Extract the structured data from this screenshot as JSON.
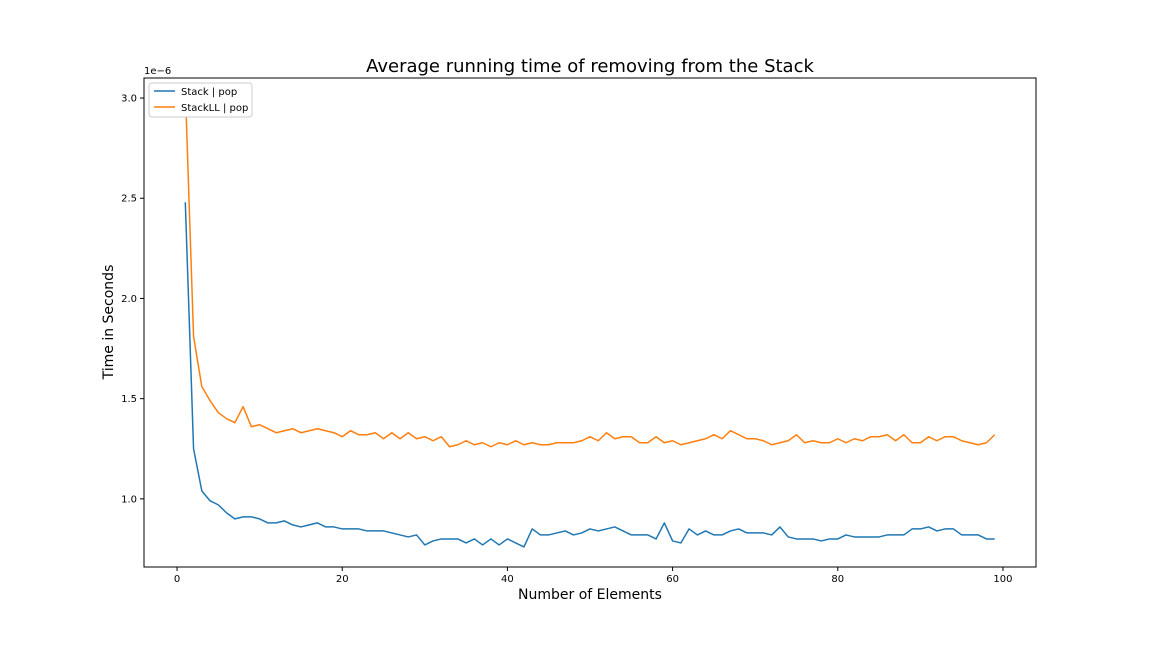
{
  "chart_data": {
    "type": "line",
    "title": "Average running time of removing from the Stack",
    "xlabel": "Number of Elements",
    "ylabel": "Time in Seconds",
    "y_offset_label": "1e−6",
    "xlim": [
      -4,
      104
    ],
    "ylim": [
      0.66,
      3.1
    ],
    "xticks": [
      0,
      20,
      40,
      60,
      80,
      100
    ],
    "xtick_labels": [
      "0",
      "20",
      "40",
      "60",
      "80",
      "100"
    ],
    "yticks": [
      1.0,
      1.5,
      2.0,
      2.5,
      3.0
    ],
    "ytick_labels": [
      "1.0",
      "1.5",
      "2.0",
      "2.5",
      "3.0"
    ],
    "grid": false,
    "legend_position": "upper-left",
    "x": [
      1,
      2,
      3,
      4,
      5,
      6,
      7,
      8,
      9,
      10,
      11,
      12,
      13,
      14,
      15,
      16,
      17,
      18,
      19,
      20,
      21,
      22,
      23,
      24,
      25,
      26,
      27,
      28,
      29,
      30,
      31,
      32,
      33,
      34,
      35,
      36,
      37,
      38,
      39,
      40,
      41,
      42,
      43,
      44,
      45,
      46,
      47,
      48,
      49,
      50,
      51,
      52,
      53,
      54,
      55,
      56,
      57,
      58,
      59,
      60,
      61,
      62,
      63,
      64,
      65,
      66,
      67,
      68,
      69,
      70,
      71,
      72,
      73,
      74,
      75,
      76,
      77,
      78,
      79,
      80,
      81,
      82,
      83,
      84,
      85,
      86,
      87,
      88,
      89,
      90,
      91,
      92,
      93,
      94,
      95,
      96,
      97,
      98,
      99
    ],
    "series": [
      {
        "name": "Stack | pop",
        "color": "#1f77b4",
        "values": [
          2.48,
          1.25,
          1.04,
          0.99,
          0.97,
          0.93,
          0.9,
          0.91,
          0.91,
          0.9,
          0.88,
          0.88,
          0.89,
          0.87,
          0.86,
          0.87,
          0.88,
          0.86,
          0.86,
          0.85,
          0.85,
          0.85,
          0.84,
          0.84,
          0.84,
          0.83,
          0.82,
          0.81,
          0.82,
          0.77,
          0.79,
          0.8,
          0.8,
          0.8,
          0.78,
          0.8,
          0.77,
          0.8,
          0.77,
          0.8,
          0.78,
          0.76,
          0.85,
          0.82,
          0.82,
          0.83,
          0.84,
          0.82,
          0.83,
          0.85,
          0.84,
          0.85,
          0.86,
          0.84,
          0.82,
          0.82,
          0.82,
          0.8,
          0.88,
          0.79,
          0.78,
          0.85,
          0.82,
          0.84,
          0.82,
          0.82,
          0.84,
          0.85,
          0.83,
          0.83,
          0.83,
          0.82,
          0.86,
          0.81,
          0.8,
          0.8,
          0.8,
          0.79,
          0.8,
          0.8,
          0.82,
          0.81,
          0.81,
          0.81,
          0.81,
          0.82,
          0.82,
          0.82,
          0.85,
          0.85,
          0.86,
          0.84,
          0.85,
          0.85,
          0.82,
          0.82,
          0.82,
          0.8,
          0.8
        ]
      },
      {
        "name": "StackLL | pop",
        "color": "#ff7f0e",
        "values": [
          3.05,
          1.81,
          1.56,
          1.49,
          1.43,
          1.4,
          1.38,
          1.46,
          1.36,
          1.37,
          1.35,
          1.33,
          1.34,
          1.35,
          1.33,
          1.34,
          1.35,
          1.34,
          1.33,
          1.31,
          1.34,
          1.32,
          1.32,
          1.33,
          1.3,
          1.33,
          1.3,
          1.33,
          1.3,
          1.31,
          1.29,
          1.31,
          1.26,
          1.27,
          1.29,
          1.27,
          1.28,
          1.26,
          1.28,
          1.27,
          1.29,
          1.27,
          1.28,
          1.27,
          1.27,
          1.28,
          1.28,
          1.28,
          1.29,
          1.31,
          1.29,
          1.33,
          1.3,
          1.31,
          1.31,
          1.28,
          1.28,
          1.31,
          1.28,
          1.29,
          1.27,
          1.28,
          1.29,
          1.3,
          1.32,
          1.3,
          1.34,
          1.32,
          1.3,
          1.3,
          1.29,
          1.27,
          1.28,
          1.29,
          1.32,
          1.28,
          1.29,
          1.28,
          1.28,
          1.3,
          1.28,
          1.3,
          1.29,
          1.31,
          1.31,
          1.32,
          1.29,
          1.32,
          1.28,
          1.28,
          1.31,
          1.29,
          1.31,
          1.31,
          1.29,
          1.28,
          1.27,
          1.28,
          1.32
        ]
      }
    ]
  }
}
